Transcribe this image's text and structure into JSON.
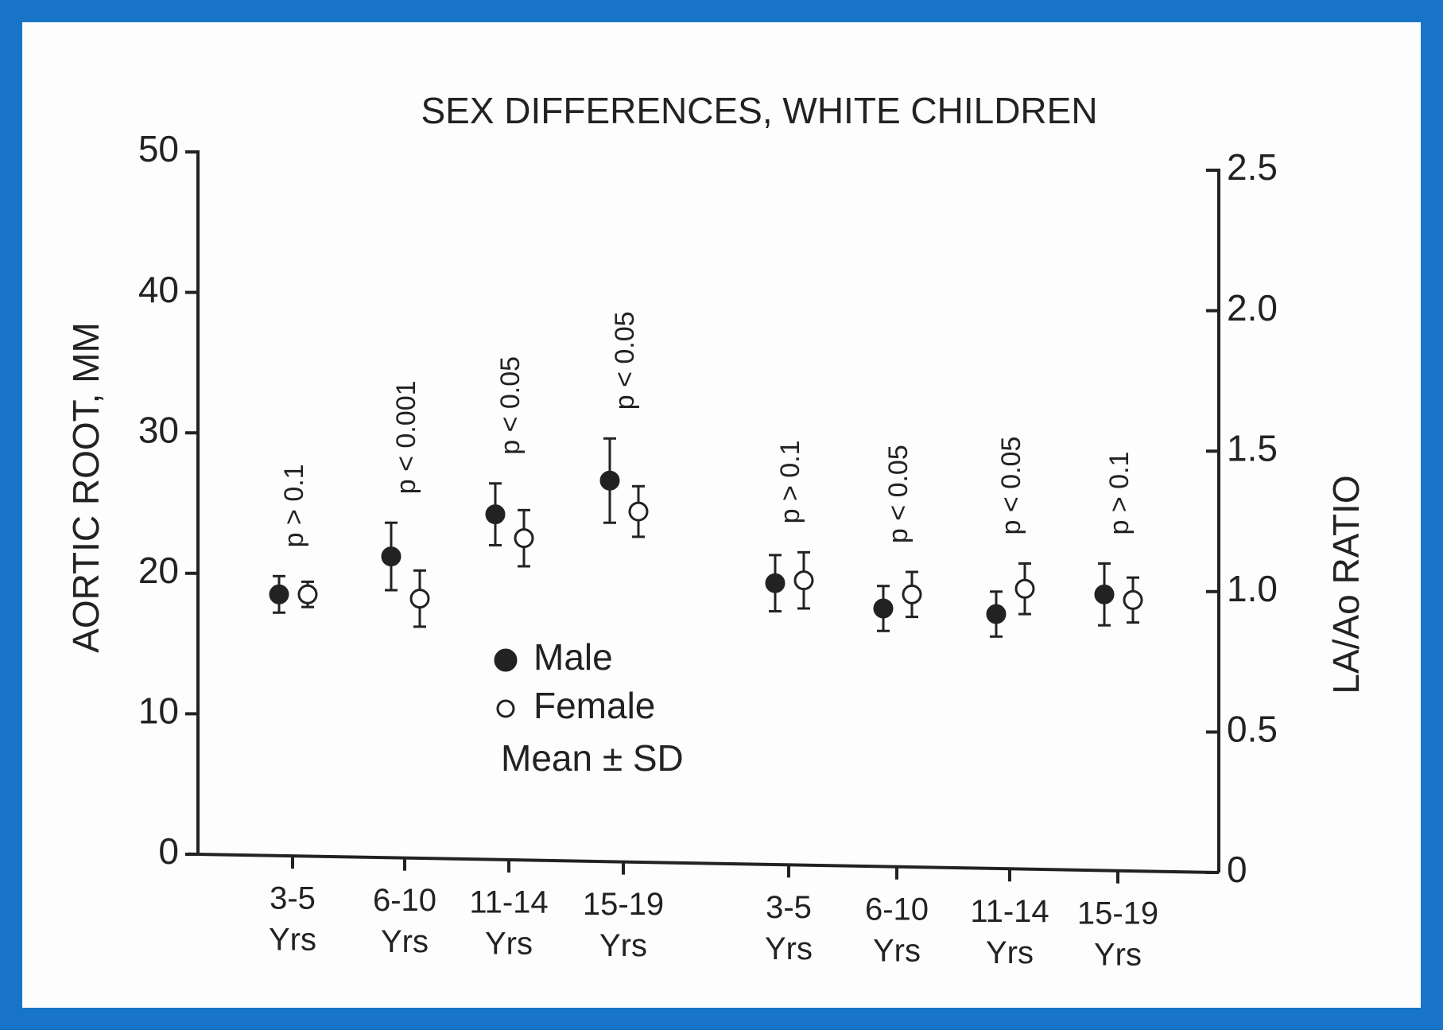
{
  "chart_data": {
    "type": "errorbar",
    "title": "SEX DIFFERENCES, WHITE CHILDREN",
    "ylabel": "AORTIC ROOT, MM",
    "y2label": "LA/Ao RATIO",
    "categories": [
      [
        "3-5",
        "Yrs"
      ],
      [
        "6-10",
        "Yrs"
      ],
      [
        "11-14",
        "Yrs"
      ],
      [
        "15-19",
        "Yrs"
      ],
      [
        "3-5",
        "Yrs"
      ],
      [
        "6-10",
        "Yrs"
      ],
      [
        "11-14",
        "Yrs"
      ],
      [
        "15-19",
        "Yrs"
      ]
    ],
    "category_axis": [
      "y",
      "y",
      "y",
      "y",
      "y2",
      "y2",
      "y2",
      "y2"
    ],
    "annotations": [
      "p > 0.1",
      "p < 0.001",
      "p < 0.05",
      "p < 0.05",
      "p > 0.1",
      "p < 0.05",
      "p < 0.05",
      "p > 0.1"
    ],
    "series": [
      {
        "name": "Male",
        "color": "#222222",
        "filled": true,
        "values": [
          18.5,
          21.2,
          24.2,
          26.6,
          1.03,
          0.94,
          0.92,
          0.99
        ],
        "errors": [
          1.3,
          2.4,
          2.2,
          3.0,
          0.1,
          0.08,
          0.08,
          0.11
        ]
      },
      {
        "name": "Female",
        "color": "#222222",
        "filled": false,
        "values": [
          18.5,
          18.2,
          22.5,
          24.4,
          1.04,
          0.99,
          1.01,
          0.97
        ],
        "errors": [
          0.9,
          2.0,
          2.0,
          1.8,
          0.1,
          0.08,
          0.09,
          0.08
        ]
      }
    ],
    "legend_note": "Mean ± SD",
    "ylim": [
      0,
      50
    ],
    "yticks": [
      0,
      10,
      20,
      30,
      40,
      50
    ],
    "y2lim": [
      0,
      2.5
    ],
    "y2ticks": [
      0,
      0.5,
      {
        "value": 1,
        "label": "1.0"
      },
      1.5,
      {
        "value": 2,
        "label": "2.0"
      },
      2.5
    ],
    "frame_color": "#1874c6"
  }
}
